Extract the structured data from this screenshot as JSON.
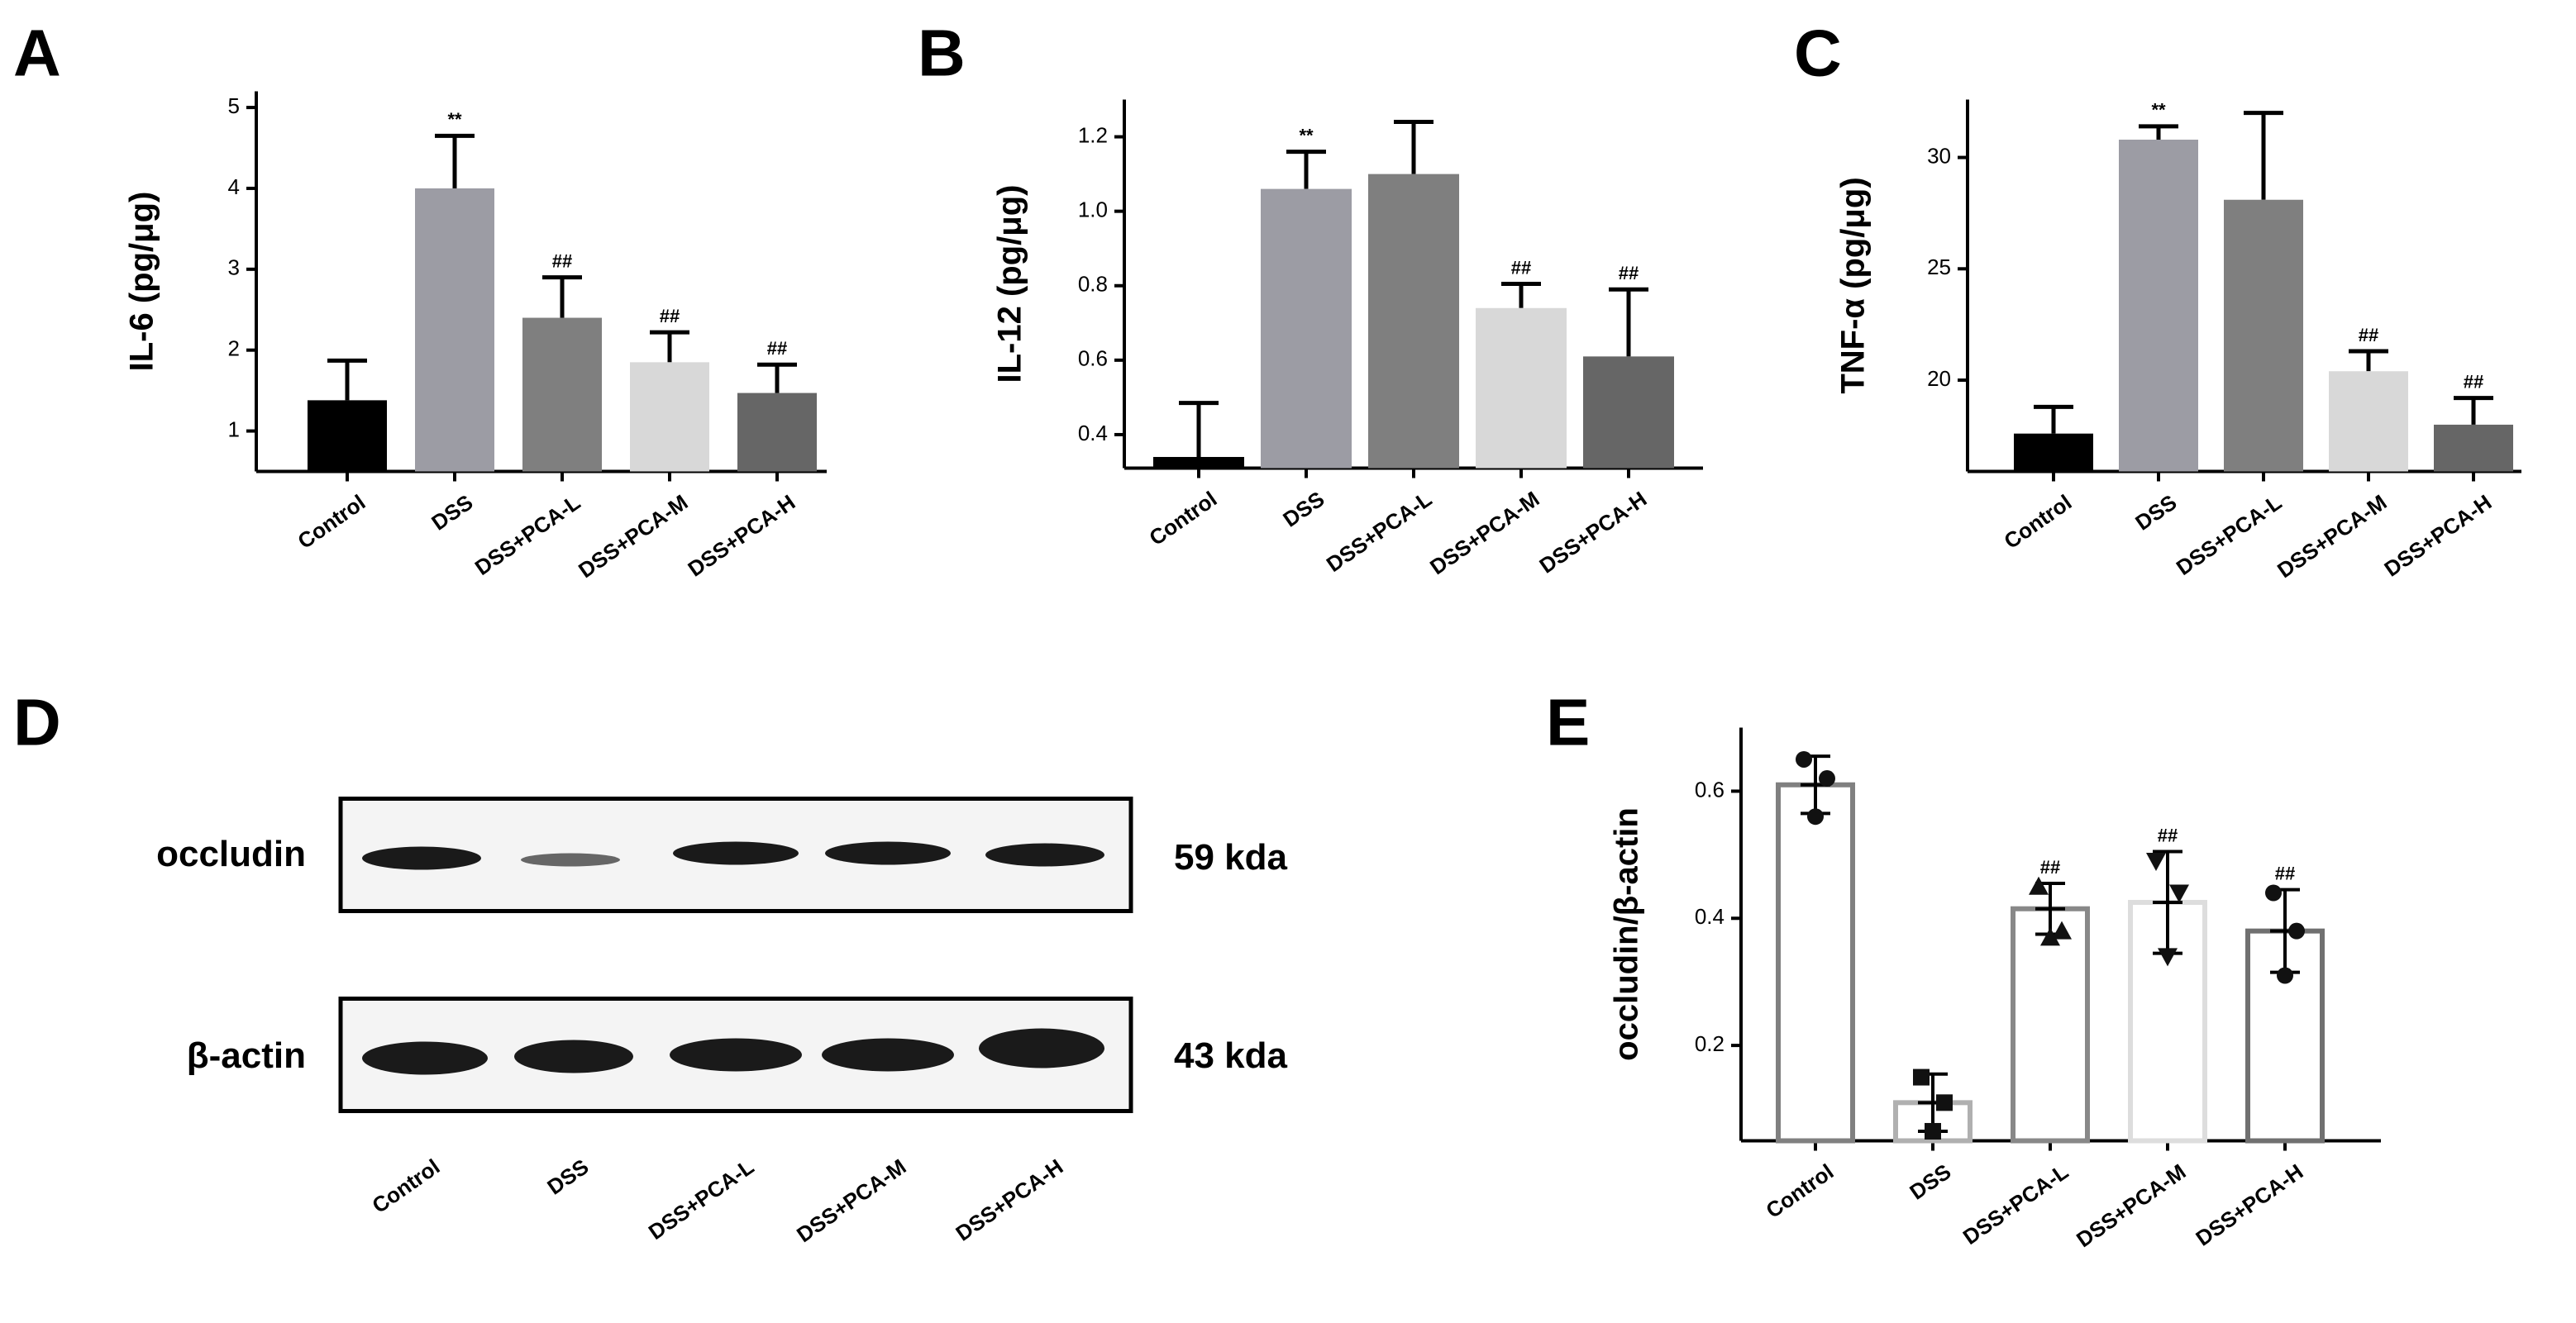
{
  "chart_data": [
    {
      "type": "bar",
      "panel": "A",
      "y_label": "IL-6 (pg/μg)",
      "categories": [
        "Control",
        "DSS",
        "DSS+PCA-L",
        "DSS+PCA-M",
        "DSS+PCA-H"
      ],
      "values": [
        1.38,
        4.0,
        2.4,
        1.85,
        1.47
      ],
      "errors": [
        0.49,
        0.65,
        0.5,
        0.37,
        0.35
      ],
      "colors": [
        "#000000",
        "#9c9ca4",
        "#7f7f7f",
        "#d8d8d8",
        "#666666"
      ],
      "annotations": [
        null,
        "**",
        "##",
        "##",
        "##"
      ],
      "ylim": [
        0.5,
        5.2
      ],
      "yticks": [
        1,
        2,
        3,
        4,
        5
      ]
    },
    {
      "type": "bar",
      "panel": "B",
      "y_label": "IL-12 (pg/μg)",
      "categories": [
        "Control",
        "DSS",
        "DSS+PCA-L",
        "DSS+PCA-M",
        "DSS+PCA-H"
      ],
      "values": [
        0.34,
        1.06,
        1.1,
        0.74,
        0.61
      ],
      "errors": [
        0.145,
        0.1,
        0.14,
        0.065,
        0.18
      ],
      "colors": [
        "#000000",
        "#9c9ca4",
        "#7f7f7f",
        "#d8d8d8",
        "#666666"
      ],
      "annotations": [
        null,
        "**",
        null,
        "##",
        "##"
      ],
      "ylim": [
        0.31,
        1.3
      ],
      "yticks": [
        0.4,
        0.6,
        0.8,
        {
          "value": 1,
          "label": "1.0"
        },
        1.2
      ]
    },
    {
      "type": "bar",
      "panel": "C",
      "y_label": "TNF-α (pg/μg)",
      "categories": [
        "Control",
        "DSS",
        "DSS+PCA-L",
        "DSS+PCA-M",
        "DSS+PCA-H"
      ],
      "values": [
        17.6,
        30.8,
        28.1,
        20.4,
        18.0
      ],
      "errors": [
        1.2,
        0.6,
        3.9,
        0.9,
        1.2
      ],
      "colors": [
        "#000000",
        "#9c9ca4",
        "#7f7f7f",
        "#d8d8d8",
        "#666666"
      ],
      "annotations": [
        null,
        "**",
        null,
        "##",
        "##"
      ],
      "ylim": [
        15.9,
        32.6
      ],
      "yticks": [
        20,
        25,
        30
      ]
    },
    {
      "type": "dotbar",
      "panel": "E",
      "y_label": "occludin/β-actin",
      "categories": [
        "Control",
        "DSS",
        "DSS+PCA-L",
        "DSS+PCA-M",
        "DSS+PCA-H"
      ],
      "values": [
        0.61,
        0.11,
        0.415,
        0.425,
        0.38
      ],
      "errors": [
        0.045,
        0.045,
        0.04,
        0.08,
        0.065
      ],
      "points": [
        [
          0.65,
          0.56,
          0.62
        ],
        [
          0.15,
          0.065,
          0.11
        ],
        [
          0.45,
          0.37,
          0.38
        ],
        [
          0.49,
          0.34,
          0.44
        ],
        [
          0.44,
          0.31,
          0.38
        ]
      ],
      "markers": [
        "circle",
        "square",
        "triangle",
        "triangle-down",
        "circle"
      ],
      "colors": [
        "#808080",
        "#b0b0b0",
        "#888888",
        "#dddddd",
        "#707070"
      ],
      "annotations": [
        null,
        null,
        "##",
        "##",
        "##"
      ],
      "ylim": [
        0.05,
        0.7
      ],
      "yticks": [
        0.2,
        0.4,
        0.6
      ]
    }
  ],
  "blot": {
    "panel": "D",
    "rows": [
      {
        "label": "occludin",
        "size": "59 kda"
      },
      {
        "label": "β-actin",
        "size": "43 kda"
      }
    ],
    "lanes": [
      "Control",
      "DSS",
      "DSS+PCA-L",
      "DSS+PCA-M",
      "DSS+PCA-H"
    ]
  }
}
